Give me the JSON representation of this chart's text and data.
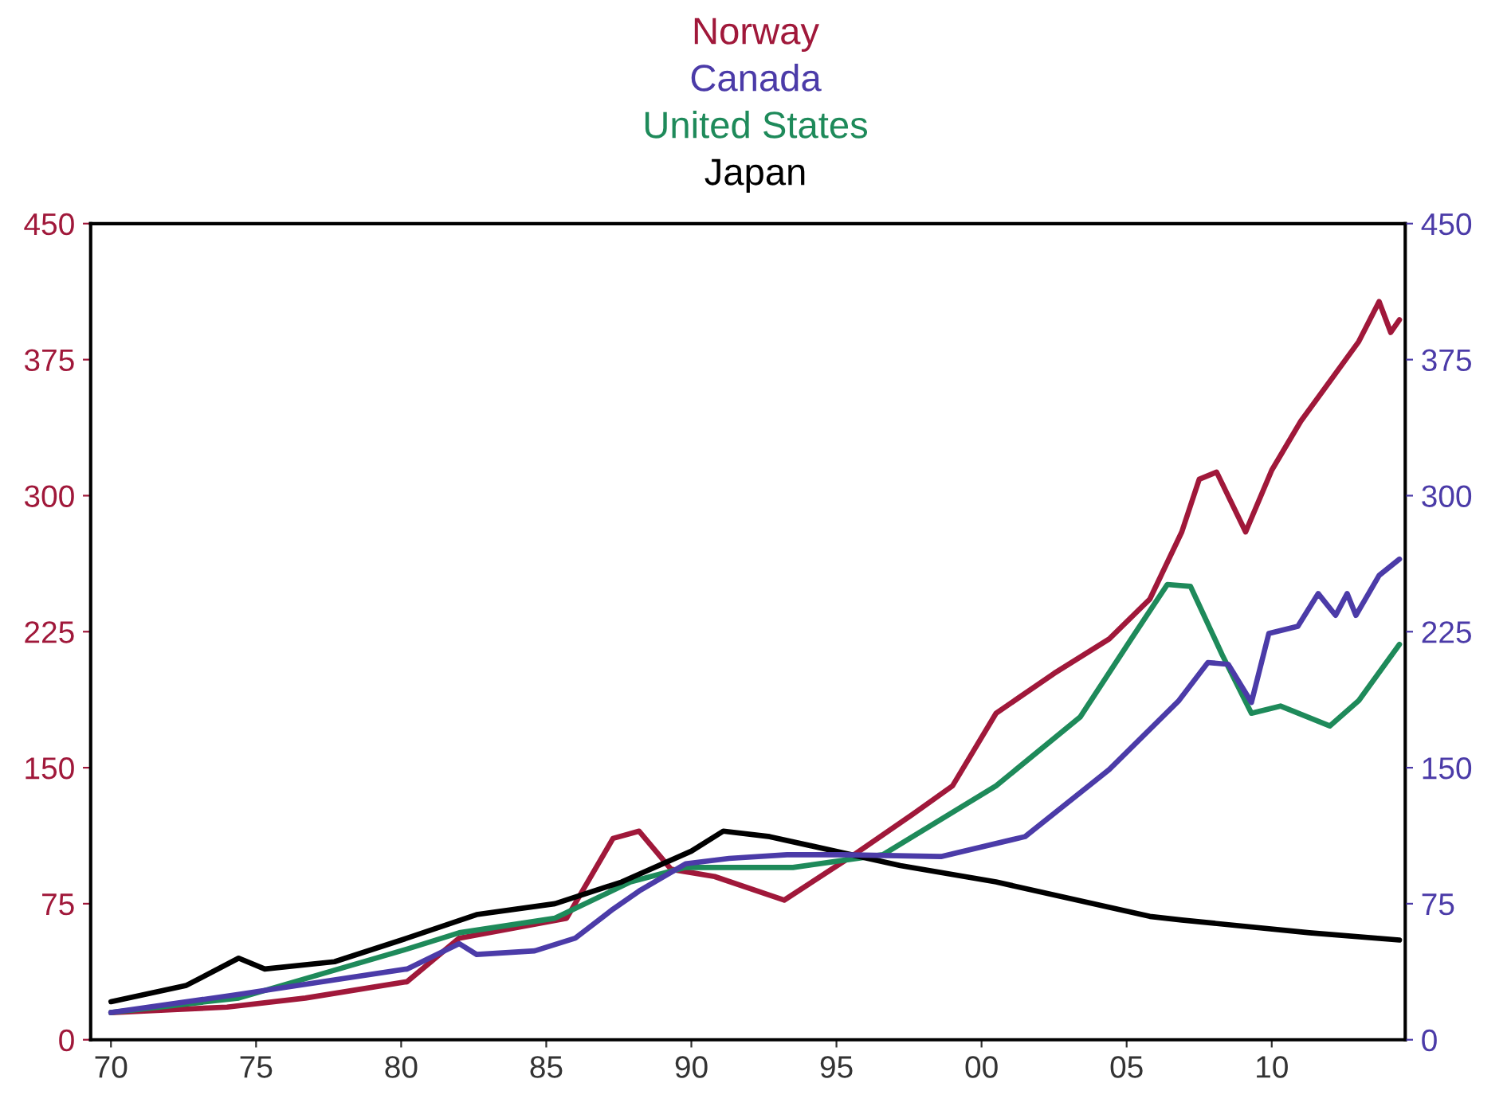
{
  "chart_data": {
    "type": "line",
    "legend": "top",
    "grid": false,
    "marker": "none",
    "line_style": "solid",
    "xlim": [
      1969.3,
      2014.6
    ],
    "xticks": [
      {
        "value": 1970,
        "label": "70"
      },
      {
        "value": 1975,
        "label": "75"
      },
      {
        "value": 1980,
        "label": "80"
      },
      {
        "value": 1985,
        "label": "85"
      },
      {
        "value": 1990,
        "label": "90"
      },
      {
        "value": 1995,
        "label": "95"
      },
      {
        "value": 2000,
        "label": "00"
      },
      {
        "value": 2005,
        "label": "05"
      },
      {
        "value": 2010,
        "label": "10"
      }
    ],
    "ylim": [
      0,
      450
    ],
    "yticks": [
      0,
      75,
      150,
      225,
      300,
      375,
      450
    ],
    "y2lim": [
      0,
      450
    ],
    "y2ticks": [
      0,
      75,
      150,
      225,
      300,
      375,
      450
    ],
    "series": [
      {
        "name": "Norway",
        "color": "#a0183a",
        "x": [
          1970,
          1974,
          1976.7,
          1980.2,
          1982,
          1985.7,
          1987.3,
          1988.2,
          1989.3,
          1990.8,
          1993.2,
          1995.6,
          1997.6,
          1999,
          2000.5,
          2002.5,
          2004.4,
          2005.8,
          2006.9,
          2007.5,
          2008.1,
          2009.1,
          2010,
          2011,
          2012,
          2013,
          2013.7,
          2014.1,
          2014.4
        ],
        "values": [
          15,
          18,
          23,
          32,
          56,
          67,
          111,
          115,
          94,
          90,
          77,
          102,
          124,
          140,
          180,
          202,
          221,
          243,
          280,
          309,
          313,
          280,
          314,
          341,
          363,
          385,
          407,
          390,
          397
        ]
      },
      {
        "name": "Canada",
        "color": "#4b3ba8",
        "axis": "y2",
        "x": [
          1970,
          1974.4,
          1980.2,
          1982,
          1982.6,
          1984.6,
          1986,
          1987.3,
          1988.2,
          1989.8,
          1991.3,
          1993.3,
          1995.2,
          1998.6,
          2001.5,
          2004.4,
          2006.8,
          2007.8,
          2008.5,
          2009.3,
          2009.9,
          2010.9,
          2011.6,
          2012.2,
          2012.6,
          2012.9,
          2013.7,
          2014.4
        ],
        "values": [
          15,
          25,
          39,
          53,
          47,
          49,
          56,
          72,
          82,
          97,
          100,
          102,
          102,
          101,
          112,
          149,
          187,
          208,
          207,
          186,
          224,
          228,
          246,
          234,
          246,
          234,
          256,
          265
        ]
      },
      {
        "name": "United States",
        "color": "#1e8a5a",
        "x": [
          1970,
          1974.4,
          1980.2,
          1982,
          1985.3,
          1987.9,
          1989.8,
          1993.5,
          1996.6,
          2000.5,
          2003.4,
          2005.2,
          2006.4,
          2007.2,
          2008.3,
          2009.3,
          2010.3,
          2012,
          2013,
          2014.4
        ],
        "values": [
          15,
          23,
          50,
          59,
          67,
          87,
          95,
          95,
          102,
          140,
          178,
          222,
          251,
          250,
          212,
          180,
          184,
          173,
          187,
          218
        ]
      },
      {
        "name": "Japan",
        "color": "#000000",
        "x": [
          1970,
          1972.6,
          1974.4,
          1975.3,
          1977.7,
          1980.2,
          1982.6,
          1985.3,
          1987.6,
          1990,
          1991.1,
          1992.7,
          1997.2,
          2000.5,
          2005.8,
          2006.9,
          2011.3,
          2014.4
        ],
        "values": [
          21,
          30,
          45,
          39,
          43,
          56,
          69,
          75,
          87,
          104,
          115,
          112,
          96,
          87,
          68,
          66,
          59,
          55
        ]
      }
    ]
  }
}
